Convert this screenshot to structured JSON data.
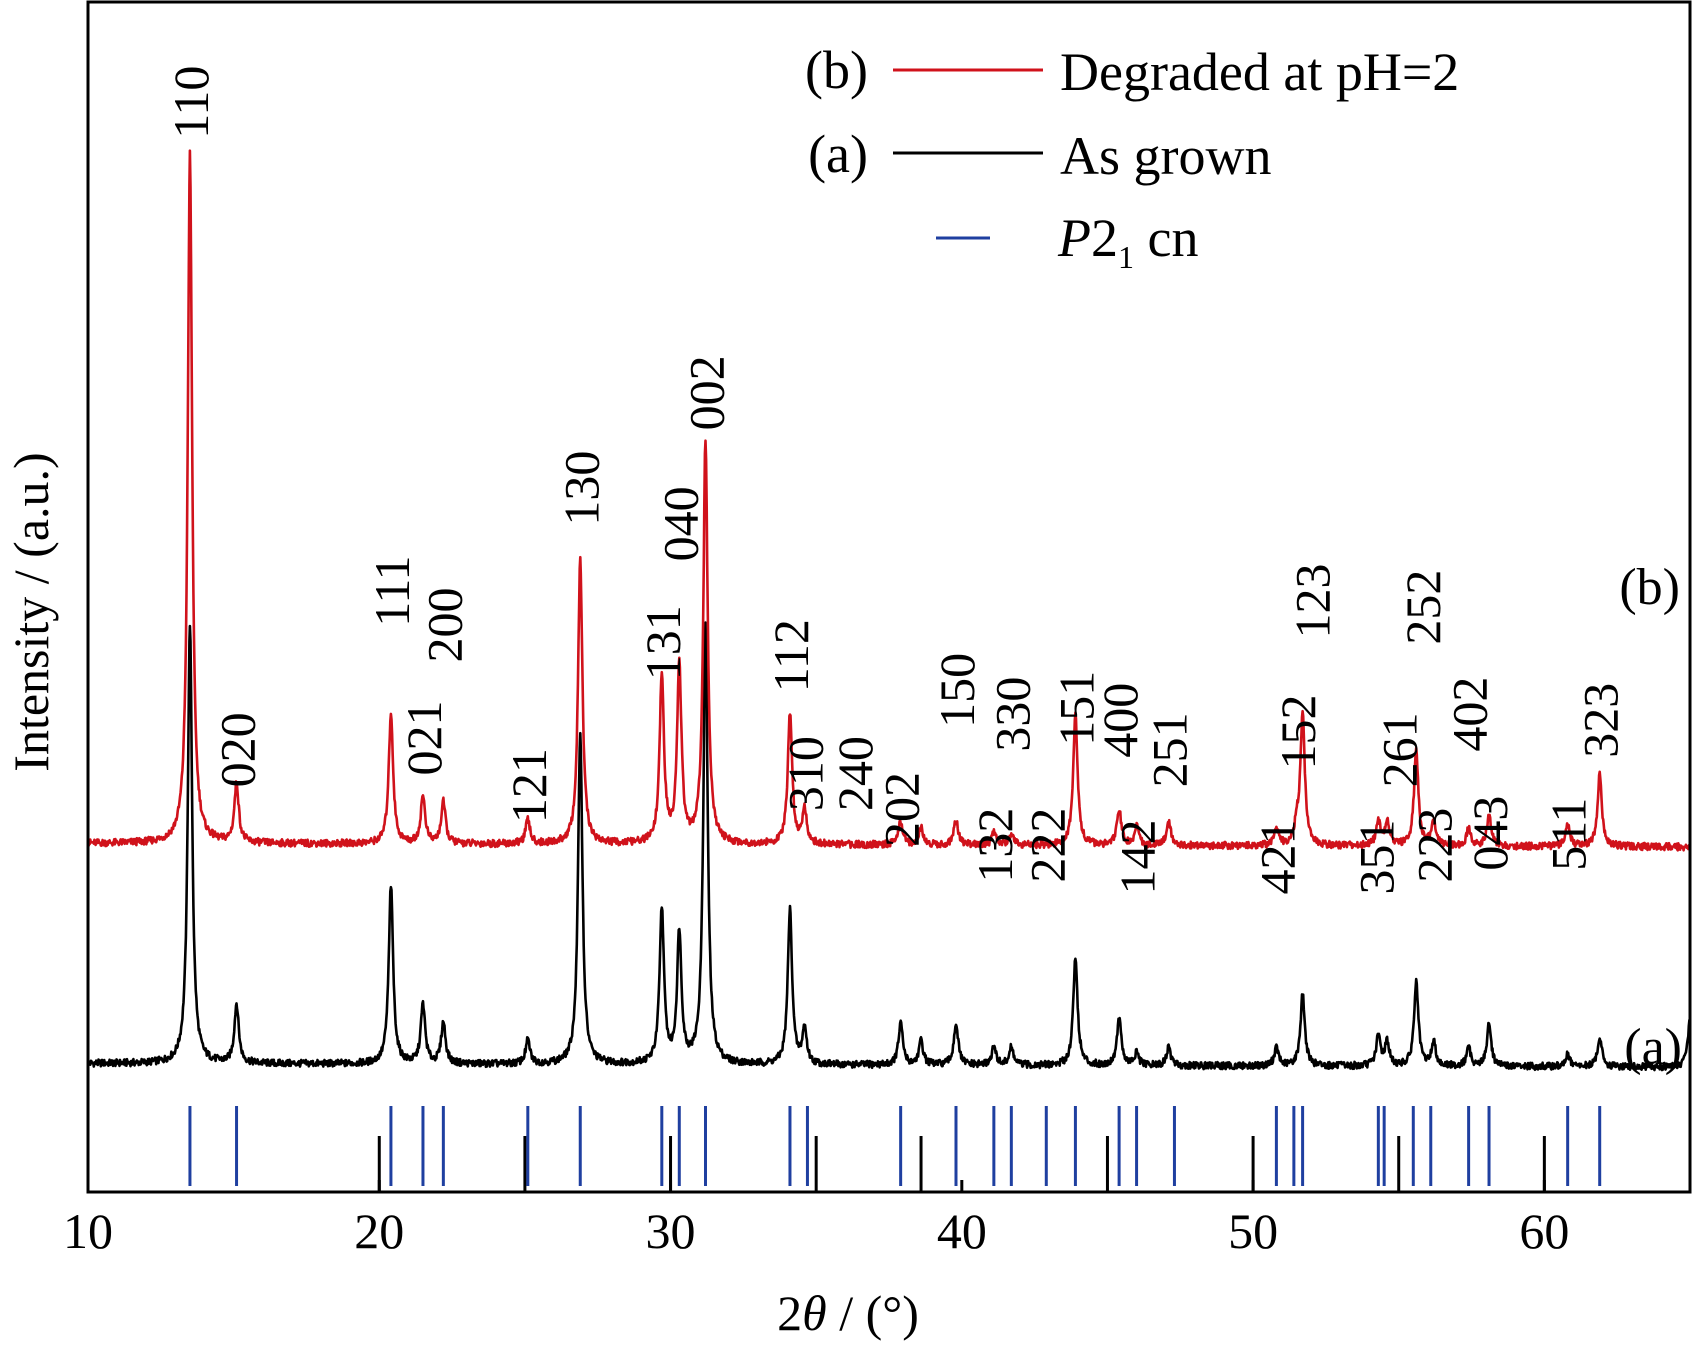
{
  "chart_data": {
    "type": "line",
    "xlabel_prefix": "2",
    "xlabel_theta": "θ",
    "xlabel_suffix": " / (°)",
    "ylabel": "Intensity / (a.u.)",
    "xlim": [
      10,
      65
    ],
    "x_ticks": [
      10,
      20,
      30,
      40,
      50,
      60
    ],
    "legend": {
      "position": "top-right",
      "entries": [
        {
          "tag": "(b)",
          "label": "Degraded at pH=2",
          "color": "#d0121b",
          "kind": "line"
        },
        {
          "tag": "(a)",
          "label": "As grown",
          "color": "#000000",
          "kind": "line"
        },
        {
          "tag": "",
          "label_main": "P",
          "label_num": "2",
          "label_sub": "1",
          "label_rest": " cn",
          "color": "#1f3fa0",
          "kind": "tick"
        }
      ]
    },
    "curve_tags": {
      "b": "(b)",
      "a": "(a)"
    },
    "series": [
      {
        "name": "Degraded at pH=2",
        "tag": "(b)",
        "color": "#d0121b",
        "baseline": 0.29,
        "peaks": [
          {
            "x": 13.5,
            "h": 0.58
          },
          {
            "x": 15.1,
            "h": 0.05
          },
          {
            "x": 20.4,
            "h": 0.11
          },
          {
            "x": 21.5,
            "h": 0.04
          },
          {
            "x": 22.2,
            "h": 0.035
          },
          {
            "x": 25.1,
            "h": 0.02
          },
          {
            "x": 26.9,
            "h": 0.24
          },
          {
            "x": 29.7,
            "h": 0.14
          },
          {
            "x": 30.3,
            "h": 0.15
          },
          {
            "x": 31.2,
            "h": 0.34
          },
          {
            "x": 34.1,
            "h": 0.11
          },
          {
            "x": 34.6,
            "h": 0.03
          },
          {
            "x": 37.9,
            "h": 0.02
          },
          {
            "x": 38.6,
            "h": 0.015
          },
          {
            "x": 39.8,
            "h": 0.02
          },
          {
            "x": 41.1,
            "h": 0.01
          },
          {
            "x": 41.7,
            "h": 0.01
          },
          {
            "x": 43.9,
            "h": 0.11
          },
          {
            "x": 45.4,
            "h": 0.03
          },
          {
            "x": 46.0,
            "h": 0.015
          },
          {
            "x": 47.1,
            "h": 0.02
          },
          {
            "x": 50.8,
            "h": 0.015
          },
          {
            "x": 51.5,
            "h": 0.015
          },
          {
            "x": 51.7,
            "h": 0.11
          },
          {
            "x": 54.3,
            "h": 0.02
          },
          {
            "x": 54.6,
            "h": 0.02
          },
          {
            "x": 55.6,
            "h": 0.08
          },
          {
            "x": 56.2,
            "h": 0.02
          },
          {
            "x": 57.4,
            "h": 0.015
          },
          {
            "x": 58.1,
            "h": 0.025
          },
          {
            "x": 60.8,
            "h": 0.02
          },
          {
            "x": 61.9,
            "h": 0.06
          }
        ]
      },
      {
        "name": "As grown",
        "tag": "(a)",
        "color": "#000000",
        "baseline": 0.105,
        "peaks": [
          {
            "x": 13.5,
            "h": 0.37
          },
          {
            "x": 15.1,
            "h": 0.05
          },
          {
            "x": 20.4,
            "h": 0.15
          },
          {
            "x": 21.5,
            "h": 0.05
          },
          {
            "x": 22.2,
            "h": 0.035
          },
          {
            "x": 25.1,
            "h": 0.02
          },
          {
            "x": 26.9,
            "h": 0.28
          },
          {
            "x": 29.7,
            "h": 0.13
          },
          {
            "x": 30.3,
            "h": 0.11
          },
          {
            "x": 31.2,
            "h": 0.37
          },
          {
            "x": 34.1,
            "h": 0.13
          },
          {
            "x": 34.6,
            "h": 0.03
          },
          {
            "x": 37.9,
            "h": 0.035
          },
          {
            "x": 38.6,
            "h": 0.02
          },
          {
            "x": 39.8,
            "h": 0.035
          },
          {
            "x": 41.1,
            "h": 0.015
          },
          {
            "x": 41.7,
            "h": 0.015
          },
          {
            "x": 43.9,
            "h": 0.09
          },
          {
            "x": 45.4,
            "h": 0.04
          },
          {
            "x": 46.0,
            "h": 0.01
          },
          {
            "x": 47.1,
            "h": 0.015
          },
          {
            "x": 50.8,
            "h": 0.015
          },
          {
            "x": 51.7,
            "h": 0.06
          },
          {
            "x": 54.3,
            "h": 0.025
          },
          {
            "x": 54.6,
            "h": 0.02
          },
          {
            "x": 55.6,
            "h": 0.07
          },
          {
            "x": 56.2,
            "h": 0.02
          },
          {
            "x": 57.4,
            "h": 0.015
          },
          {
            "x": 58.1,
            "h": 0.035
          },
          {
            "x": 60.8,
            "h": 0.01
          },
          {
            "x": 61.9,
            "h": 0.025
          },
          {
            "x": 65.0,
            "h": 0.04
          }
        ]
      }
    ],
    "reference_ticks_blue": [
      13.5,
      15.1,
      20.4,
      21.5,
      22.2,
      25.1,
      26.9,
      29.7,
      30.3,
      31.2,
      34.1,
      34.7,
      37.9,
      39.8,
      41.1,
      41.7,
      42.9,
      43.9,
      45.4,
      46.0,
      47.3,
      50.8,
      51.4,
      51.7,
      54.3,
      54.5,
      55.5,
      56.1,
      57.4,
      58.1,
      60.8,
      61.9
    ],
    "reference_ticks_black": [
      20.0,
      25.0,
      30.0,
      35.0,
      38.6,
      45.0,
      50.0,
      55.0,
      60.0
    ],
    "peak_labels": [
      {
        "text": "110",
        "x": 13.5,
        "base_y": 0.885
      },
      {
        "text": "020",
        "x": 15.1,
        "base_y": 0.34
      },
      {
        "text": "111",
        "x": 20.4,
        "base_y": 0.475
      },
      {
        "text": "021",
        "x": 21.5,
        "base_y": 0.35
      },
      {
        "text": "200",
        "x": 22.2,
        "base_y": 0.445
      },
      {
        "text": "121",
        "x": 25.1,
        "base_y": 0.31
      },
      {
        "text": "130",
        "x": 26.9,
        "base_y": 0.56
      },
      {
        "text": "131",
        "x": 29.7,
        "base_y": 0.43
      },
      {
        "text": "040",
        "x": 30.3,
        "base_y": 0.53
      },
      {
        "text": "002",
        "x": 31.2,
        "base_y": 0.64
      },
      {
        "text": "112",
        "x": 34.1,
        "base_y": 0.42
      },
      {
        "text": "310",
        "x": 34.6,
        "base_y": 0.32
      },
      {
        "text": "240",
        "x": 36.3,
        "base_y": 0.32
      },
      {
        "text": "202",
        "x": 37.9,
        "base_y": 0.29
      },
      {
        "text": "150",
        "x": 39.8,
        "base_y": 0.39
      },
      {
        "text": "132",
        "x": 41.1,
        "base_y": 0.26
      },
      {
        "text": "330",
        "x": 41.7,
        "base_y": 0.37
      },
      {
        "text": "222",
        "x": 42.9,
        "base_y": 0.26
      },
      {
        "text": "151",
        "x": 43.9,
        "base_y": 0.375
      },
      {
        "text": "400",
        "x": 45.4,
        "base_y": 0.365
      },
      {
        "text": "142",
        "x": 46.0,
        "base_y": 0.25
      },
      {
        "text": "251",
        "x": 47.1,
        "base_y": 0.34
      },
      {
        "text": "421",
        "x": 50.8,
        "base_y": 0.25
      },
      {
        "text": "152",
        "x": 51.5,
        "base_y": 0.355
      },
      {
        "text": "123",
        "x": 52.0,
        "base_y": 0.465
      },
      {
        "text": "351",
        "x": 54.2,
        "base_y": 0.25
      },
      {
        "text": "261",
        "x": 55.0,
        "base_y": 0.34
      },
      {
        "text": "252",
        "x": 55.8,
        "base_y": 0.46
      },
      {
        "text": "223",
        "x": 56.2,
        "base_y": 0.26
      },
      {
        "text": "402",
        "x": 57.4,
        "base_y": 0.37
      },
      {
        "text": "043",
        "x": 58.1,
        "base_y": 0.27
      },
      {
        "text": "511",
        "x": 60.8,
        "base_y": 0.27
      },
      {
        "text": "323",
        "x": 61.9,
        "base_y": 0.365
      }
    ]
  }
}
